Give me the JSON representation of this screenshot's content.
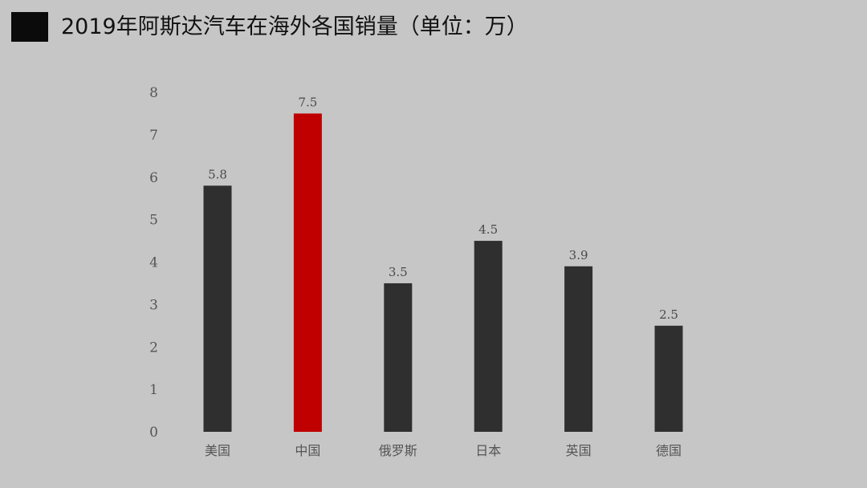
{
  "chart_data": {
    "type": "bar",
    "title": "2019年阿斯达汽车在海外各国销量（单位：万）",
    "categories": [
      "美国",
      "中国",
      "俄罗斯",
      "日本",
      "英国",
      "德国"
    ],
    "values": [
      5.8,
      7.5,
      3.5,
      4.5,
      3.9,
      2.5
    ],
    "data_labels": [
      "5.8",
      "7.5",
      "3.5",
      "4.5",
      "3.9",
      "2.5"
    ],
    "yticks": [
      "0",
      "1",
      "2",
      "3",
      "4",
      "5",
      "6",
      "7",
      "8"
    ],
    "ylim": [
      0,
      8
    ],
    "grid": false,
    "legend": "none",
    "colors": {
      "default_bar": "#2f2f2f",
      "highlight_bar": "#c00000",
      "highlight_category": "中国",
      "background": "#c6c6c6",
      "title_block": "#0b0b0b"
    }
  }
}
